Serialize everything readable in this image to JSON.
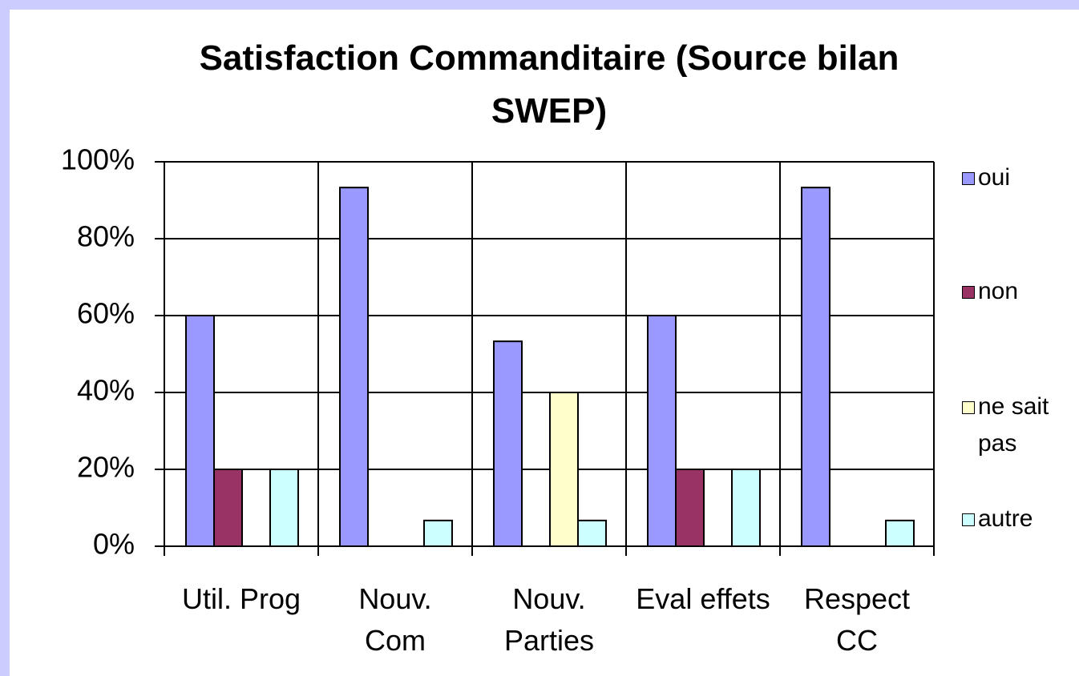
{
  "chart_data": {
    "type": "bar",
    "title": "Satisfaction Commanditaire (Source bilan SWEP)",
    "categories": [
      "Util. Prog",
      "Nouv. Com",
      "Nouv. Parties",
      "Eval effets",
      "Respect CC"
    ],
    "series": [
      {
        "name": "oui",
        "color": "#9999ff",
        "values": [
          60,
          93.3,
          53.3,
          60,
          93.3
        ]
      },
      {
        "name": "non",
        "color": "#993366",
        "values": [
          20,
          0,
          0,
          20,
          0
        ]
      },
      {
        "name": "ne sait pas",
        "color": "#ffffcc",
        "values": [
          0,
          0,
          40,
          0,
          0
        ]
      },
      {
        "name": "autre",
        "color": "#ccffff",
        "values": [
          20,
          6.7,
          6.7,
          20,
          6.7
        ]
      }
    ],
    "ylim": [
      0,
      100
    ],
    "yticks": [
      {
        "value": 0,
        "label": "0%"
      },
      {
        "value": 20,
        "label": "20%"
      },
      {
        "value": 40,
        "label": "40%"
      },
      {
        "value": 60,
        "label": "60%"
      },
      {
        "value": 80,
        "label": "80%"
      },
      {
        "value": 100,
        "label": "100%"
      }
    ],
    "grid": true,
    "legend": "right"
  }
}
